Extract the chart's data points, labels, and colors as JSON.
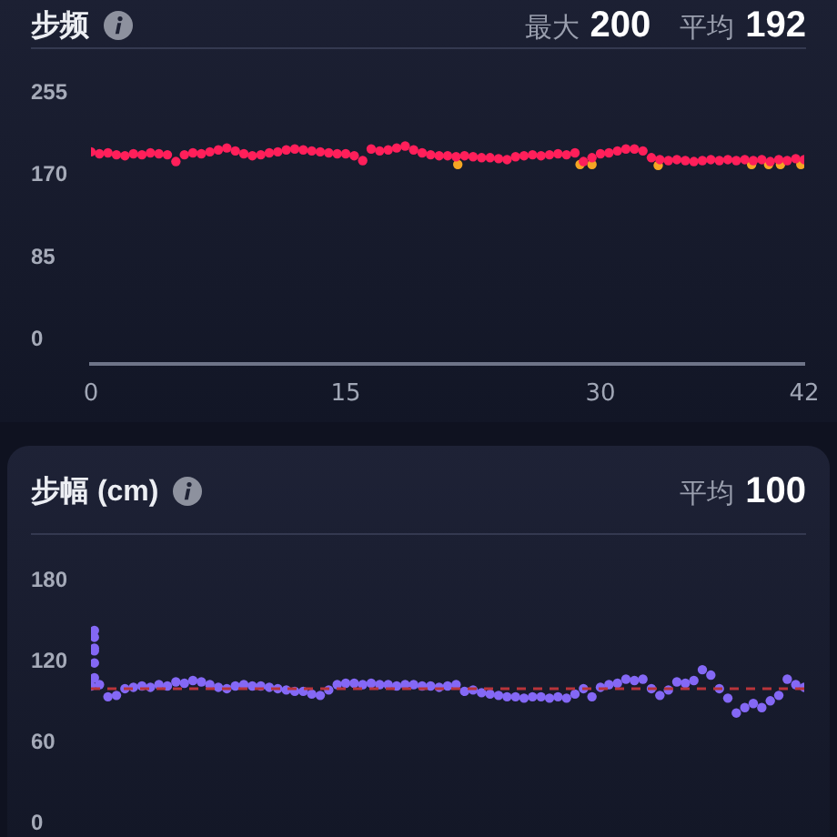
{
  "chart_data": [
    {
      "type": "scatter",
      "title": "步频",
      "annotations": [
        "最大 200",
        "平均 192"
      ],
      "marker": "circle",
      "xlim": [
        0,
        42
      ],
      "xticks": [
        0,
        15,
        30,
        42
      ],
      "ylim": [
        -25,
        255
      ],
      "yticks": [
        0,
        85,
        170,
        255
      ],
      "series": [
        {
          "color": "#ff1f5a",
          "x": [
            0,
            0.5,
            1,
            1.5,
            2,
            2.5,
            3,
            3.5,
            4,
            4.5,
            5,
            5.5,
            6,
            6.5,
            7,
            7.5,
            8,
            8.5,
            9,
            9.5,
            10,
            10.5,
            11,
            11.5,
            12,
            12.5,
            13,
            13.5,
            14,
            14.5,
            15,
            15.5,
            16,
            16.5,
            17,
            17.5,
            18,
            18.5,
            19,
            19.5,
            20,
            20.5,
            21,
            21.5,
            22,
            22.5,
            23,
            23.5,
            24,
            24.5,
            25,
            25.5,
            26,
            26.5,
            27,
            27.5,
            28,
            28.5,
            29,
            29.5,
            30,
            30.5,
            31,
            31.5,
            32,
            32.5,
            33,
            33.5,
            34,
            34.5,
            35,
            35.5,
            36,
            36.5,
            37,
            37.5,
            38,
            38.5,
            39,
            39.5,
            40,
            40.5,
            41,
            41.5,
            42
          ],
          "values": [
            194,
            192,
            193,
            191,
            190,
            192,
            191,
            193,
            192,
            191,
            184,
            191,
            193,
            192,
            194,
            196,
            198,
            195,
            192,
            190,
            191,
            193,
            194,
            196,
            197,
            196,
            195,
            194,
            193,
            192,
            192,
            190,
            185,
            197,
            195,
            196,
            198,
            200,
            196,
            193,
            191,
            190,
            190,
            189,
            190,
            189,
            188,
            188,
            187,
            186,
            189,
            190,
            191,
            190,
            191,
            192,
            191,
            193,
            184,
            188,
            192,
            193,
            195,
            197,
            197,
            195,
            188,
            186,
            185,
            186,
            185,
            184,
            185,
            186,
            185,
            186,
            185,
            186,
            185,
            186,
            184,
            186,
            185,
            187,
            186
          ]
        },
        {
          "color": "#f5a623",
          "x": [
            21.6,
            28.8,
            29.5,
            33.4,
            38.9,
            39.9,
            40.6,
            41.8
          ],
          "values": [
            181,
            181,
            181,
            180,
            181,
            181,
            181,
            181
          ]
        }
      ]
    },
    {
      "type": "scatter",
      "title": "步幅 (cm)",
      "annotations": [
        "平均 100"
      ],
      "marker": "circle",
      "tick_labels": "y",
      "xlim": [
        0,
        42
      ],
      "ylim": [
        0,
        180
      ],
      "yticks": [
        0,
        60,
        120,
        180
      ],
      "ref_lines": [
        {
          "axis": "y",
          "value": 100,
          "color": "#b8343a",
          "line_style": "dashed"
        }
      ],
      "series": [
        {
          "color": "#8468f5",
          "x": [
            0.2,
            0.2,
            0.2,
            0.2,
            0.2,
            0.2,
            0,
            0.5,
            1,
            1.5,
            2,
            2.5,
            3,
            3.5,
            4,
            4.5,
            5,
            5.5,
            6,
            6.5,
            7,
            7.5,
            8,
            8.5,
            9,
            9.5,
            10,
            10.5,
            11,
            11.5,
            12,
            12.5,
            13,
            13.5,
            14,
            14.5,
            15,
            15.5,
            16,
            16.5,
            17,
            17.5,
            18,
            18.5,
            19,
            19.5,
            20,
            20.5,
            21,
            21.5,
            22,
            22.5,
            23,
            23.5,
            24,
            24.5,
            25,
            25.5,
            26,
            26.5,
            27,
            27.5,
            28,
            28.5,
            29,
            29.5,
            30,
            30.5,
            31,
            31.5,
            32,
            32.5,
            33,
            33.5,
            34,
            34.5,
            35,
            35.5,
            36,
            36.5,
            37,
            37.5,
            38,
            38.5,
            39,
            39.5,
            40,
            40.5,
            41,
            41.5,
            42
          ],
          "values": [
            143,
            138,
            130,
            128,
            119,
            108,
            102,
            103,
            94,
            95,
            100,
            101,
            102,
            101,
            103,
            102,
            105,
            104,
            106,
            105,
            103,
            101,
            100,
            102,
            103,
            102,
            102,
            101,
            100,
            99,
            98,
            98,
            96,
            95,
            99,
            103,
            104,
            104,
            103,
            104,
            103,
            103,
            102,
            103,
            103,
            102,
            102,
            101,
            102,
            103,
            98,
            99,
            97,
            96,
            95,
            94,
            94,
            93,
            94,
            94,
            93,
            94,
            93,
            96,
            100,
            94,
            101,
            103,
            104,
            107,
            106,
            107,
            100,
            95,
            99,
            105,
            104,
            106,
            114,
            110,
            100,
            93,
            82,
            86,
            89,
            86,
            91,
            95,
            107,
            103,
            101
          ]
        }
      ]
    }
  ]
}
